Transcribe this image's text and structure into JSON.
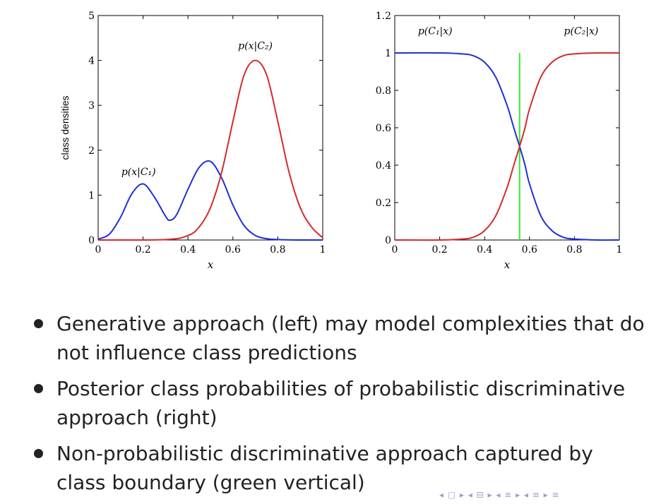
{
  "chart_data": [
    {
      "type": "line",
      "ylabel": "class densities",
      "xlabel": "x",
      "xlim": [
        0,
        1
      ],
      "ylim": [
        0,
        5
      ],
      "xticks": [
        "0",
        "0.2",
        "0.4",
        "0.6",
        "0.8",
        "1"
      ],
      "yticks": [
        "0",
        "1",
        "2",
        "3",
        "4",
        "5"
      ],
      "series": [
        {
          "name": "p(x|C1)",
          "color": "#1f2fd6",
          "x": [
            0,
            0.05,
            0.1,
            0.15,
            0.2,
            0.25,
            0.3,
            0.32,
            0.35,
            0.4,
            0.45,
            0.5,
            0.55,
            0.6,
            0.65,
            0.7,
            0.75,
            0.8,
            0.9,
            1.0
          ],
          "y": [
            0.02,
            0.13,
            0.51,
            1.03,
            1.25,
            0.96,
            0.53,
            0.44,
            0.57,
            1.13,
            1.62,
            1.75,
            1.38,
            0.78,
            0.32,
            0.1,
            0.03,
            0.01,
            0,
            0
          ]
        },
        {
          "name": "p(x|C2)",
          "color": "#d42a2a",
          "x": [
            0,
            0.3,
            0.4,
            0.45,
            0.5,
            0.55,
            0.6,
            0.65,
            0.7,
            0.75,
            0.8,
            0.85,
            0.9,
            0.95,
            1.0
          ],
          "y": [
            0,
            0.01,
            0.1,
            0.29,
            0.72,
            1.51,
            2.64,
            3.68,
            4.0,
            3.68,
            2.64,
            1.51,
            0.72,
            0.29,
            0.05
          ]
        }
      ],
      "annotations": [
        {
          "text": "p(x|C₁)",
          "x": 0.18,
          "y": 1.45
        },
        {
          "text": "p(x|C₂)",
          "x": 0.7,
          "y": 4.25
        }
      ]
    },
    {
      "type": "line",
      "xlabel": "x",
      "xlim": [
        0,
        1
      ],
      "ylim": [
        0,
        1.2
      ],
      "xticks": [
        "0",
        "0.2",
        "0.4",
        "0.6",
        "0.8",
        "1"
      ],
      "yticks": [
        "0",
        "0.2",
        "0.4",
        "0.6",
        "0.8",
        "1",
        "1.2"
      ],
      "series": [
        {
          "name": "p(C1|x)",
          "color": "#1f2fd6",
          "x": [
            0,
            0.2,
            0.3,
            0.35,
            0.4,
            0.45,
            0.5,
            0.53,
            0.556,
            0.58,
            0.6,
            0.65,
            0.7,
            0.75,
            0.8,
            0.9,
            1.0
          ],
          "y": [
            1,
            1,
            0.995,
            0.985,
            0.95,
            0.87,
            0.72,
            0.6,
            0.5,
            0.4,
            0.3,
            0.13,
            0.05,
            0.015,
            0.005,
            0,
            0
          ]
        },
        {
          "name": "p(C2|x)",
          "color": "#d42a2a",
          "x": [
            0,
            0.2,
            0.3,
            0.35,
            0.4,
            0.45,
            0.5,
            0.53,
            0.556,
            0.58,
            0.6,
            0.65,
            0.7,
            0.75,
            0.8,
            0.9,
            1.0
          ],
          "y": [
            0,
            0,
            0.005,
            0.015,
            0.05,
            0.13,
            0.28,
            0.4,
            0.5,
            0.6,
            0.7,
            0.87,
            0.95,
            0.985,
            0.995,
            1,
            1
          ]
        }
      ],
      "boundary": {
        "x": 0.556,
        "y_top": 1.0,
        "color": "#33ee33"
      },
      "annotations": [
        {
          "text": "p(C₁|x)",
          "x": 0.18,
          "y": 1.1
        },
        {
          "text": "p(C₂|x)",
          "x": 0.83,
          "y": 1.1
        }
      ]
    }
  ],
  "bullets": [
    "Generative approach (left) may model complexities that do not influence class predictions",
    "Posterior class probabilities of probabilistic discriminative approach (right)",
    "Non-probabilistic discriminative approach captured by class boundary (green vertical)"
  ],
  "nav_text": "◂ ▢ ▸ ◂ ⊟ ▸ ◂ ≡ ▸ ◂ ≡ ▸  ≡"
}
